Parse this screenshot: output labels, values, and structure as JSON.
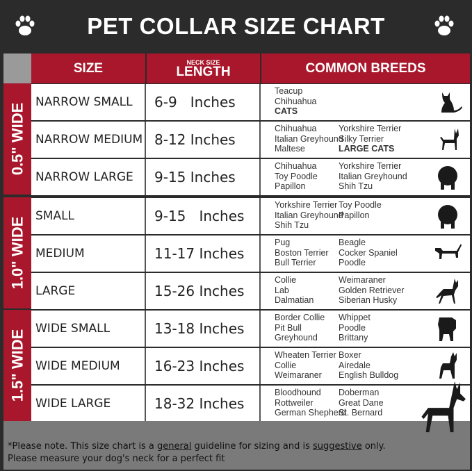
{
  "title": "PET COLLAR SIZE CHART",
  "header": {
    "size": "SIZE",
    "length_small": "NECK SIZE",
    "length": "LENGTH",
    "breeds": "COMMON BREEDS"
  },
  "groups": [
    "0.5\" WIDE",
    "1.0\" WIDE",
    "1.5\" WIDE"
  ],
  "rows": [
    {
      "size": "NARROW SMALL",
      "length": "6-9   Inches",
      "left": [
        "Teacup",
        "Chihuahua"
      ],
      "left_bold": "CATS",
      "right": [],
      "right_bold": "",
      "icon": "cat-silhouette-icon"
    },
    {
      "size": "NARROW MEDIUM",
      "length": "8-12 Inches",
      "left": [
        "Chihuahua",
        "Italian Greyhound",
        "Maltese"
      ],
      "left_bold": "",
      "right": [
        "Yorkshire Terrier",
        "Silky Terrier"
      ],
      "right_bold": "LARGE CATS",
      "icon": "chihuahua-silhouette-icon"
    },
    {
      "size": "NARROW LARGE",
      "length": "9-15 Inches",
      "left": [
        "Chihuahua",
        "Toy Poodle",
        "Papillon"
      ],
      "left_bold": "",
      "right": [
        "Yorkshire Terrier",
        "Italian Greyhound",
        "Shih Tzu"
      ],
      "right_bold": "",
      "icon": "pomeranian-silhouette-icon"
    },
    {
      "size": "SMALL",
      "length": "9-15   Inches",
      "left": [
        "Yorkshire Terrier",
        "Italian Greyhound",
        "Shih Tzu"
      ],
      "left_bold": "",
      "right": [
        "Toy Poodle",
        "Papillon"
      ],
      "right_bold": "",
      "icon": "pomeranian-silhouette-icon"
    },
    {
      "size": "MEDIUM",
      "length": "11-17 Inches",
      "left": [
        "Pug",
        "Boston Terrier",
        "Bull Terrier"
      ],
      "left_bold": "",
      "right": [
        "Beagle",
        "Cocker Spaniel",
        "Poodle"
      ],
      "right_bold": "",
      "icon": "dachshund-silhouette-icon"
    },
    {
      "size": "LARGE",
      "length": "15-26 Inches",
      "left": [
        "Collie",
        "Lab",
        "Dalmatian"
      ],
      "left_bold": "",
      "right": [
        "Weimaraner",
        "Golden Retriever",
        "Siberian Husky"
      ],
      "right_bold": "",
      "icon": "shepherd-silhouette-icon"
    },
    {
      "size": "WIDE SMALL",
      "length": "13-18 Inches",
      "left": [
        "Border Collie",
        "Pit Bull",
        "Greyhound"
      ],
      "left_bold": "",
      "right": [
        "Whippet",
        "Poodle",
        "Brittany"
      ],
      "right_bold": "",
      "icon": "bulldog-silhouette-icon"
    },
    {
      "size": "WIDE MEDIUM",
      "length": "16-23 Inches",
      "left": [
        "Wheaten Terrier",
        "Collie",
        "Weimaraner"
      ],
      "left_bold": "",
      "right": [
        "Boxer",
        "Airedale",
        "English Bulldog"
      ],
      "right_bold": "",
      "icon": "pitbull-silhouette-icon"
    },
    {
      "size": "WIDE LARGE",
      "length": "18-32 Inches",
      "left": [
        "Bloodhound",
        "Rottweiler",
        "German Shepherd"
      ],
      "left_bold": "",
      "right": [
        "Doberman",
        "Great Dane",
        "St. Bernard"
      ],
      "right_bold": "",
      "icon": "doberman-silhouette-icon"
    }
  ],
  "footer": {
    "p1": "*Please note. This size chart is a ",
    "u1": "general",
    "p2": " guideline for sizing and is ",
    "u2": "suggestive",
    "p3": " only.",
    "line2": "Please measure your dog's neck for a perfect fit"
  },
  "colors": {
    "accent": "#a8172b",
    "header_bg": "#2b2b2b",
    "footer_bg": "#7a7a7a"
  }
}
